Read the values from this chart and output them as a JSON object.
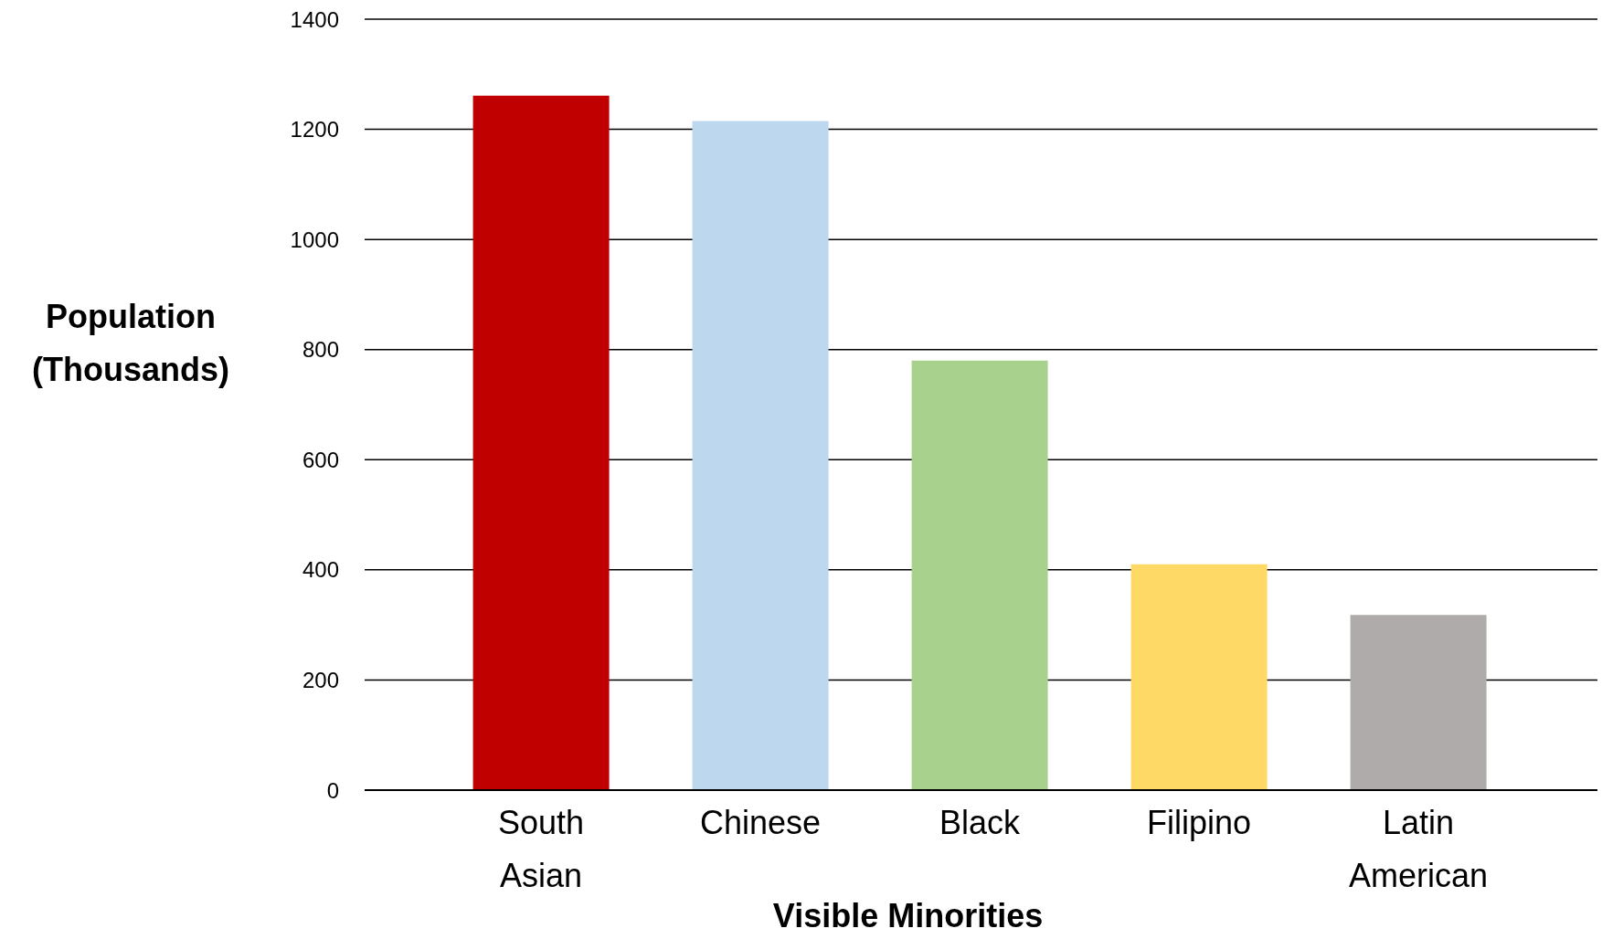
{
  "chart_data": {
    "type": "bar",
    "xlabel": "Visible Minorities",
    "ylabel": "Population (Thousands)",
    "categories": [
      "South Asian",
      "Chinese",
      "Black",
      "Filipino",
      "Latin American"
    ],
    "values": [
      1261,
      1215,
      780,
      410,
      318
    ],
    "colors": [
      "#c00000",
      "#bdd7ee",
      "#a9d18e",
      "#ffd966",
      "#afabab"
    ],
    "ylim": [
      0,
      1400
    ],
    "yticks": [
      0,
      200,
      400,
      600,
      800,
      1000,
      1200,
      1400
    ],
    "grid": "y",
    "legend": false
  }
}
